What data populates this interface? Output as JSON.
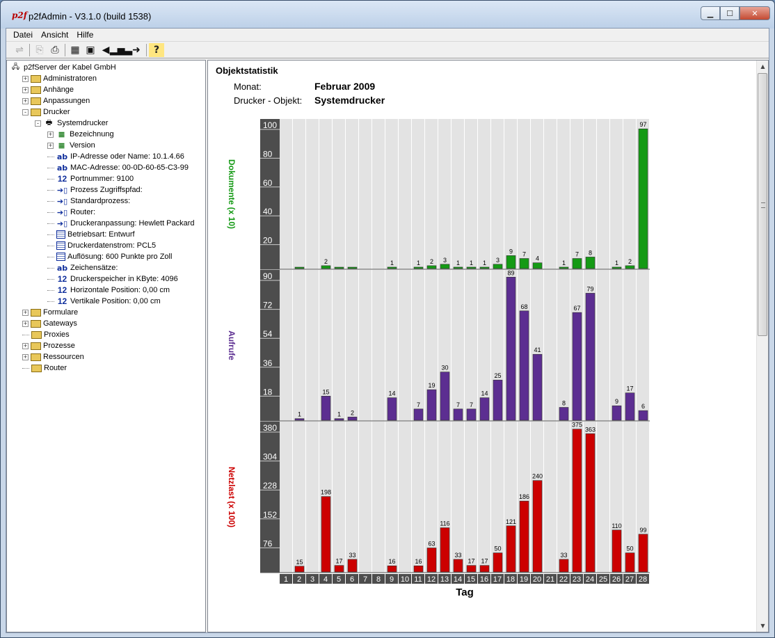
{
  "window": {
    "title": "p2fAdmin - V3.1.0 (build 1538)",
    "app_icon": "p2f",
    "buttons": {
      "minimize": "▁",
      "maximize": "☐",
      "close": "✕"
    }
  },
  "menu": [
    "Datei",
    "Ansicht",
    "Hilfe"
  ],
  "toolbar": [
    "swap-icon",
    "copy-icon",
    "print-icon",
    "properties-icon",
    "properties-edit-icon",
    "back-arrow-icon",
    "chart-icon",
    "forward-arrow-icon",
    "help-icon"
  ],
  "tree": [
    {
      "label": "p2fServer der Kabel GmbH",
      "icon": "server-icon",
      "depth": 0,
      "exp": ""
    },
    {
      "label": "Administratoren",
      "icon": "folder-icon",
      "depth": 1,
      "exp": "+"
    },
    {
      "label": "Anhänge",
      "icon": "folder-icon",
      "depth": 1,
      "exp": "+"
    },
    {
      "label": "Anpassungen",
      "icon": "folder-icon",
      "depth": 1,
      "exp": "+"
    },
    {
      "label": "Drucker",
      "icon": "folder-icon",
      "depth": 1,
      "exp": "-"
    },
    {
      "label": "Systemdrucker",
      "icon": "printer-icon",
      "depth": 2,
      "exp": "-"
    },
    {
      "label": "Bezeichnung",
      "icon": "list-icon",
      "depth": 3,
      "exp": "+"
    },
    {
      "label": "Version",
      "icon": "list-icon",
      "depth": 3,
      "exp": "+"
    },
    {
      "label": "IP-Adresse oder Name:   10.1.4.66",
      "icon": "ab-icon",
      "depth": 3,
      "exp": ""
    },
    {
      "label": "MAC-Adresse:   00-0D-60-65-C3-99",
      "icon": "ab-icon",
      "depth": 3,
      "exp": ""
    },
    {
      "label": "Portnummer:   9100",
      "icon": "number-icon",
      "depth": 3,
      "exp": ""
    },
    {
      "label": "Prozess Zugriffspfad:",
      "icon": "process-icon",
      "depth": 3,
      "exp": ""
    },
    {
      "label": "Standardprozess:",
      "icon": "process-icon",
      "depth": 3,
      "exp": ""
    },
    {
      "label": "Router:",
      "icon": "process-icon",
      "depth": 3,
      "exp": ""
    },
    {
      "label": "Druckeranpassung:   Hewlett Packard",
      "icon": "process-icon",
      "depth": 3,
      "exp": ""
    },
    {
      "label": "Betriebsart:   Entwurf",
      "icon": "grid-icon",
      "depth": 3,
      "exp": ""
    },
    {
      "label": "Druckerdatenstrom:   PCL5",
      "icon": "grid-icon",
      "depth": 3,
      "exp": ""
    },
    {
      "label": "Auflösung:   600 Punkte pro Zoll",
      "icon": "grid-icon",
      "depth": 3,
      "exp": ""
    },
    {
      "label": "Zeichensätze:",
      "icon": "ab-icon",
      "depth": 3,
      "exp": ""
    },
    {
      "label": "Druckerspeicher in KByte:   4096",
      "icon": "number-icon",
      "depth": 3,
      "exp": ""
    },
    {
      "label": "Horizontale Position:   0,00 cm",
      "icon": "number-icon",
      "depth": 3,
      "exp": ""
    },
    {
      "label": "Vertikale Position:   0,00 cm",
      "icon": "number-icon",
      "depth": 3,
      "exp": ""
    },
    {
      "label": "Formulare",
      "icon": "folder-icon",
      "depth": 1,
      "exp": "+"
    },
    {
      "label": "Gateways",
      "icon": "folder-icon",
      "depth": 1,
      "exp": "+"
    },
    {
      "label": "Proxies",
      "icon": "folder-icon",
      "depth": 1,
      "exp": ""
    },
    {
      "label": "Prozesse",
      "icon": "folder-icon",
      "depth": 1,
      "exp": "+"
    },
    {
      "label": "Ressourcen",
      "icon": "folder-icon",
      "depth": 1,
      "exp": "+"
    },
    {
      "label": "Router",
      "icon": "folder-icon",
      "depth": 1,
      "exp": ""
    }
  ],
  "report": {
    "heading": "Objektstatistik",
    "month_label": "Monat:",
    "month_value": "Februar 2009",
    "object_label": "Drucker - Objekt:",
    "object_value": "Systemdrucker"
  },
  "chart_data": [
    {
      "type": "bar",
      "ylabel": "Dokumente (x 10)",
      "color": "#159a15",
      "ylim": [
        0,
        100
      ],
      "yticks": [
        20,
        40,
        60,
        80,
        100
      ],
      "categories": [
        "1",
        "2",
        "3",
        "4",
        "5",
        "6",
        "7",
        "8",
        "9",
        "10",
        "11",
        "12",
        "13",
        "14",
        "15",
        "16",
        "17",
        "18",
        "19",
        "20",
        "21",
        "22",
        "23",
        "24",
        "25",
        "26",
        "27",
        "28"
      ],
      "values": [
        null,
        0,
        null,
        2,
        0,
        0,
        null,
        null,
        1,
        null,
        1,
        2,
        3,
        1,
        1,
        1,
        3,
        9,
        7,
        4,
        null,
        1,
        7,
        8,
        null,
        1,
        2,
        97
      ],
      "labels": [
        "",
        "",
        "",
        "2",
        "",
        "",
        "",
        "",
        "1",
        "",
        "1",
        "2",
        "3",
        "1",
        "1",
        "1",
        "3",
        "9",
        "7",
        "4",
        "",
        "1",
        "7",
        "8",
        "",
        "1",
        "2",
        "97"
      ]
    },
    {
      "type": "bar",
      "ylabel": "Aufrufe",
      "color": "#5c2e91",
      "ylim": [
        0,
        90
      ],
      "yticks": [
        18,
        36,
        54,
        72,
        90
      ],
      "categories": [
        "1",
        "2",
        "3",
        "4",
        "5",
        "6",
        "7",
        "8",
        "9",
        "10",
        "11",
        "12",
        "13",
        "14",
        "15",
        "16",
        "17",
        "18",
        "19",
        "20",
        "21",
        "22",
        "23",
        "24",
        "25",
        "26",
        "27",
        "28"
      ],
      "values": [
        null,
        1,
        null,
        15,
        1,
        2,
        null,
        null,
        14,
        null,
        7,
        19,
        30,
        7,
        7,
        14,
        25,
        89,
        68,
        41,
        null,
        8,
        67,
        79,
        null,
        9,
        17,
        6
      ],
      "labels": [
        "",
        "1",
        "",
        "15",
        "1",
        "2",
        "",
        "",
        "14",
        "",
        "7",
        "19",
        "30",
        "7",
        "7",
        "14",
        "25",
        "89",
        "68",
        "41",
        "",
        "8",
        "67",
        "79",
        "",
        "9",
        "17",
        "6"
      ]
    },
    {
      "type": "bar",
      "ylabel": "Netzlast (x 100)",
      "color": "#cc0000",
      "ylim": [
        0,
        380
      ],
      "yticks": [
        76,
        152,
        228,
        304,
        380
      ],
      "categories": [
        "1",
        "2",
        "3",
        "4",
        "5",
        "6",
        "7",
        "8",
        "9",
        "10",
        "11",
        "12",
        "13",
        "14",
        "15",
        "16",
        "17",
        "18",
        "19",
        "20",
        "21",
        "22",
        "23",
        "24",
        "25",
        "26",
        "27",
        "28"
      ],
      "values": [
        null,
        15,
        null,
        198,
        17,
        33,
        null,
        null,
        16,
        null,
        16,
        63,
        116,
        33,
        17,
        17,
        50,
        121,
        186,
        240,
        null,
        33,
        375,
        363,
        null,
        110,
        50,
        99
      ],
      "labels": [
        "",
        "15",
        "",
        "198",
        "17",
        "33",
        "",
        "",
        "16",
        "",
        "16",
        "63",
        "116",
        "33",
        "17",
        "17",
        "50",
        "121",
        "186",
        "240",
        "",
        "33",
        "375",
        "363",
        "",
        "110",
        "50",
        "99"
      ]
    }
  ],
  "xlabel": "Tag"
}
